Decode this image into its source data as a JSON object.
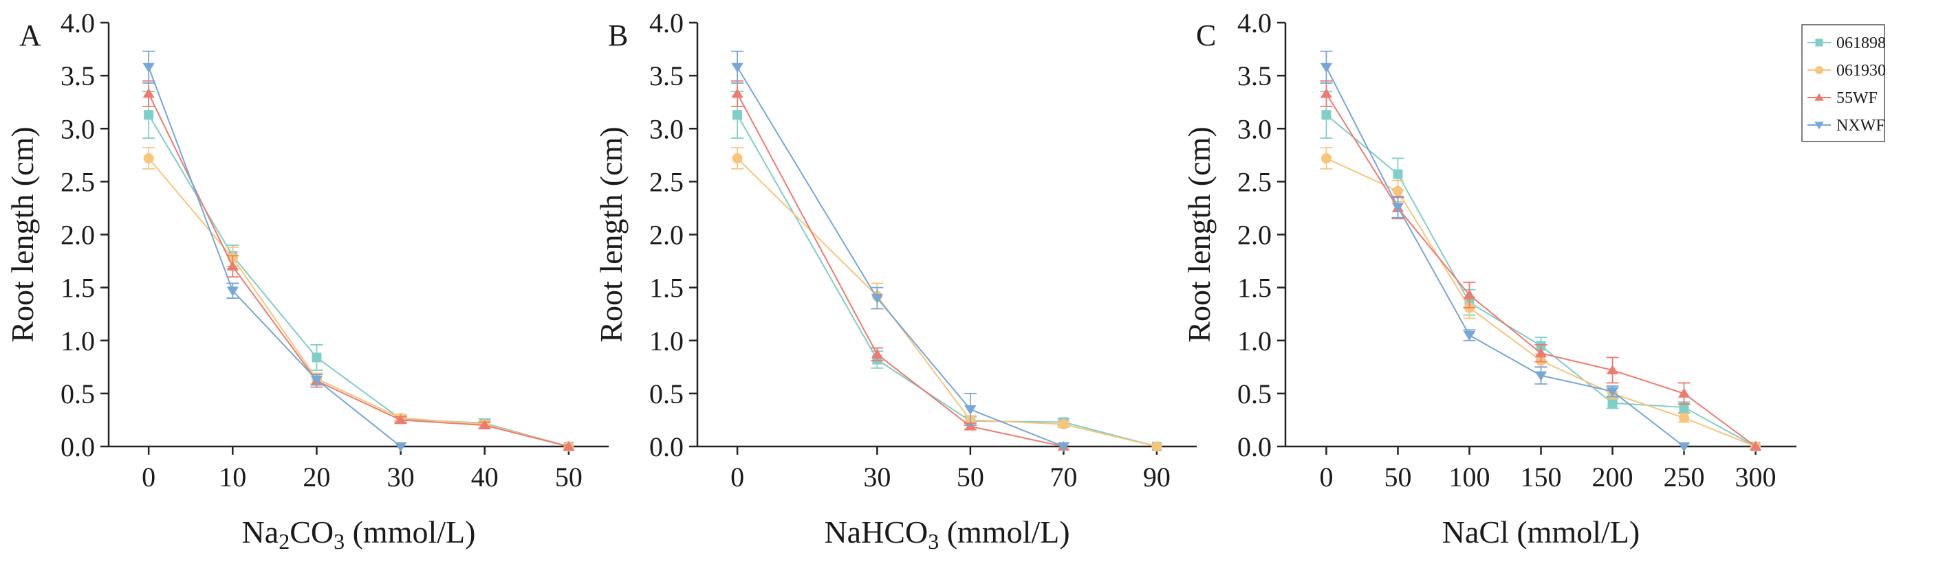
{
  "chart_data": [
    {
      "type": "line",
      "panel": "A",
      "xlabel": "Na2CO3 (mmol/L)",
      "xlabel_parts": {
        "pre": "Na",
        "sub1": "2",
        "mid": "CO",
        "sub2": "3",
        "post": " (mmol/L)"
      },
      "ylabel": "Root length (cm)",
      "x": [
        0,
        10,
        20,
        30,
        40,
        50
      ],
      "x_tick_labels": [
        "0",
        "10",
        "20",
        "30",
        "40",
        "50"
      ],
      "ylim": [
        0,
        4.0
      ],
      "y_ticks": [
        0,
        0.5,
        1.0,
        1.5,
        2.0,
        2.5,
        3.0,
        3.5,
        4.0
      ],
      "y_tick_labels": [
        "0.0",
        "0.5",
        "1.0",
        "1.5",
        "2.0",
        "2.5",
        "3.0",
        "3.5",
        "4.0"
      ],
      "series": [
        {
          "name": "061898",
          "values": [
            3.13,
            1.8,
            0.84,
            0.26,
            0.22,
            0.0
          ],
          "errors": [
            0.22,
            0.1,
            0.12,
            0.03,
            0.04,
            0.0
          ]
        },
        {
          "name": "061930",
          "values": [
            2.72,
            1.78,
            0.64,
            0.27,
            0.21,
            0.0
          ],
          "errors": [
            0.1,
            0.1,
            0.05,
            0.03,
            0.03,
            0.0
          ]
        },
        {
          "name": "55WF",
          "values": [
            3.33,
            1.7,
            0.62,
            0.25,
            0.2,
            0.0
          ],
          "errors": [
            0.12,
            0.1,
            0.06,
            0.03,
            0.03,
            0.0
          ]
        },
        {
          "name": "NXWF",
          "values": [
            3.58,
            1.47,
            0.63,
            0.0,
            null,
            null
          ],
          "errors": [
            0.15,
            0.07,
            0.05,
            0.0,
            0,
            0
          ]
        }
      ]
    },
    {
      "type": "line",
      "panel": "B",
      "xlabel": "NaHCO3 (mmol/L)",
      "xlabel_parts": {
        "pre": "NaHCO",
        "sub1": "3",
        "mid": "",
        "sub2": "",
        "post": " (mmol/L)"
      },
      "ylabel": "Root length (cm)",
      "x": [
        0,
        30,
        50,
        70,
        90
      ],
      "x_tick_labels": [
        "0",
        "30",
        "50",
        "70",
        "90"
      ],
      "ylim": [
        0,
        4.0
      ],
      "y_ticks": [
        0,
        0.5,
        1.0,
        1.5,
        2.0,
        2.5,
        3.0,
        3.5,
        4.0
      ],
      "y_tick_labels": [
        "0.0",
        "0.5",
        "1.0",
        "1.5",
        "2.0",
        "2.5",
        "3.0",
        "3.5",
        "4.0"
      ],
      "series": [
        {
          "name": "061898",
          "values": [
            3.13,
            0.82,
            0.24,
            0.23,
            0.0
          ],
          "errors": [
            0.22,
            0.08,
            0.04,
            0.03,
            0.0
          ]
        },
        {
          "name": "061930",
          "values": [
            2.72,
            1.42,
            0.25,
            0.21,
            0.0
          ],
          "errors": [
            0.1,
            0.12,
            0.04,
            0.03,
            0.0
          ]
        },
        {
          "name": "55WF",
          "values": [
            3.33,
            0.87,
            0.19,
            0.0,
            null
          ],
          "errors": [
            0.12,
            0.06,
            0.03,
            0.0,
            0
          ]
        },
        {
          "name": "NXWF",
          "values": [
            3.58,
            1.4,
            0.35,
            0.0,
            null
          ],
          "errors": [
            0.15,
            0.1,
            0.15,
            0.0,
            0
          ]
        }
      ]
    },
    {
      "type": "line",
      "panel": "C",
      "xlabel": "NaCl (mmol/L)",
      "xlabel_parts": {
        "pre": "NaCl (mmol/L)",
        "sub1": "",
        "mid": "",
        "sub2": "",
        "post": ""
      },
      "ylabel": "Root length (cm)",
      "x": [
        0,
        50,
        100,
        150,
        200,
        250,
        300
      ],
      "x_tick_labels": [
        "0",
        "50",
        "100",
        "150",
        "200",
        "250",
        "300"
      ],
      "ylim": [
        0,
        4.0
      ],
      "y_ticks": [
        0,
        0.5,
        1.0,
        1.5,
        2.0,
        2.5,
        3.0,
        3.5,
        4.0
      ],
      "y_tick_labels": [
        "0.0",
        "0.5",
        "1.0",
        "1.5",
        "2.0",
        "2.5",
        "3.0",
        "3.5",
        "4.0"
      ],
      "series": [
        {
          "name": "061898",
          "values": [
            3.13,
            2.57,
            1.36,
            0.95,
            0.41,
            0.37,
            0.0
          ],
          "errors": [
            0.22,
            0.15,
            0.12,
            0.08,
            0.05,
            0.05,
            0.0
          ]
        },
        {
          "name": "061930",
          "values": [
            2.72,
            2.41,
            1.31,
            0.81,
            0.5,
            0.27,
            0.0
          ],
          "errors": [
            0.1,
            0.1,
            0.1,
            0.06,
            0.05,
            0.04,
            0.0
          ]
        },
        {
          "name": "55WF",
          "values": [
            3.33,
            2.25,
            1.43,
            0.88,
            0.72,
            0.5,
            0.0
          ],
          "errors": [
            0.12,
            0.1,
            0.12,
            0.08,
            0.12,
            0.1,
            0.0
          ]
        },
        {
          "name": "NXWF",
          "values": [
            3.58,
            2.26,
            1.05,
            0.67,
            0.52,
            0.0,
            null
          ],
          "errors": [
            0.15,
            0.1,
            0.05,
            0.08,
            0.05,
            0.0,
            0
          ]
        }
      ]
    }
  ],
  "legend": {
    "placement": "top-right",
    "entries": [
      {
        "name": "061898",
        "color": "#7ecfc8",
        "marker": "square"
      },
      {
        "name": "061930",
        "color": "#f8c57a",
        "marker": "circle"
      },
      {
        "name": "55WF",
        "color": "#ee7b6f",
        "marker": "triangle-up"
      },
      {
        "name": "NXWF",
        "color": "#76a7d6",
        "marker": "triangle-down"
      }
    ]
  }
}
